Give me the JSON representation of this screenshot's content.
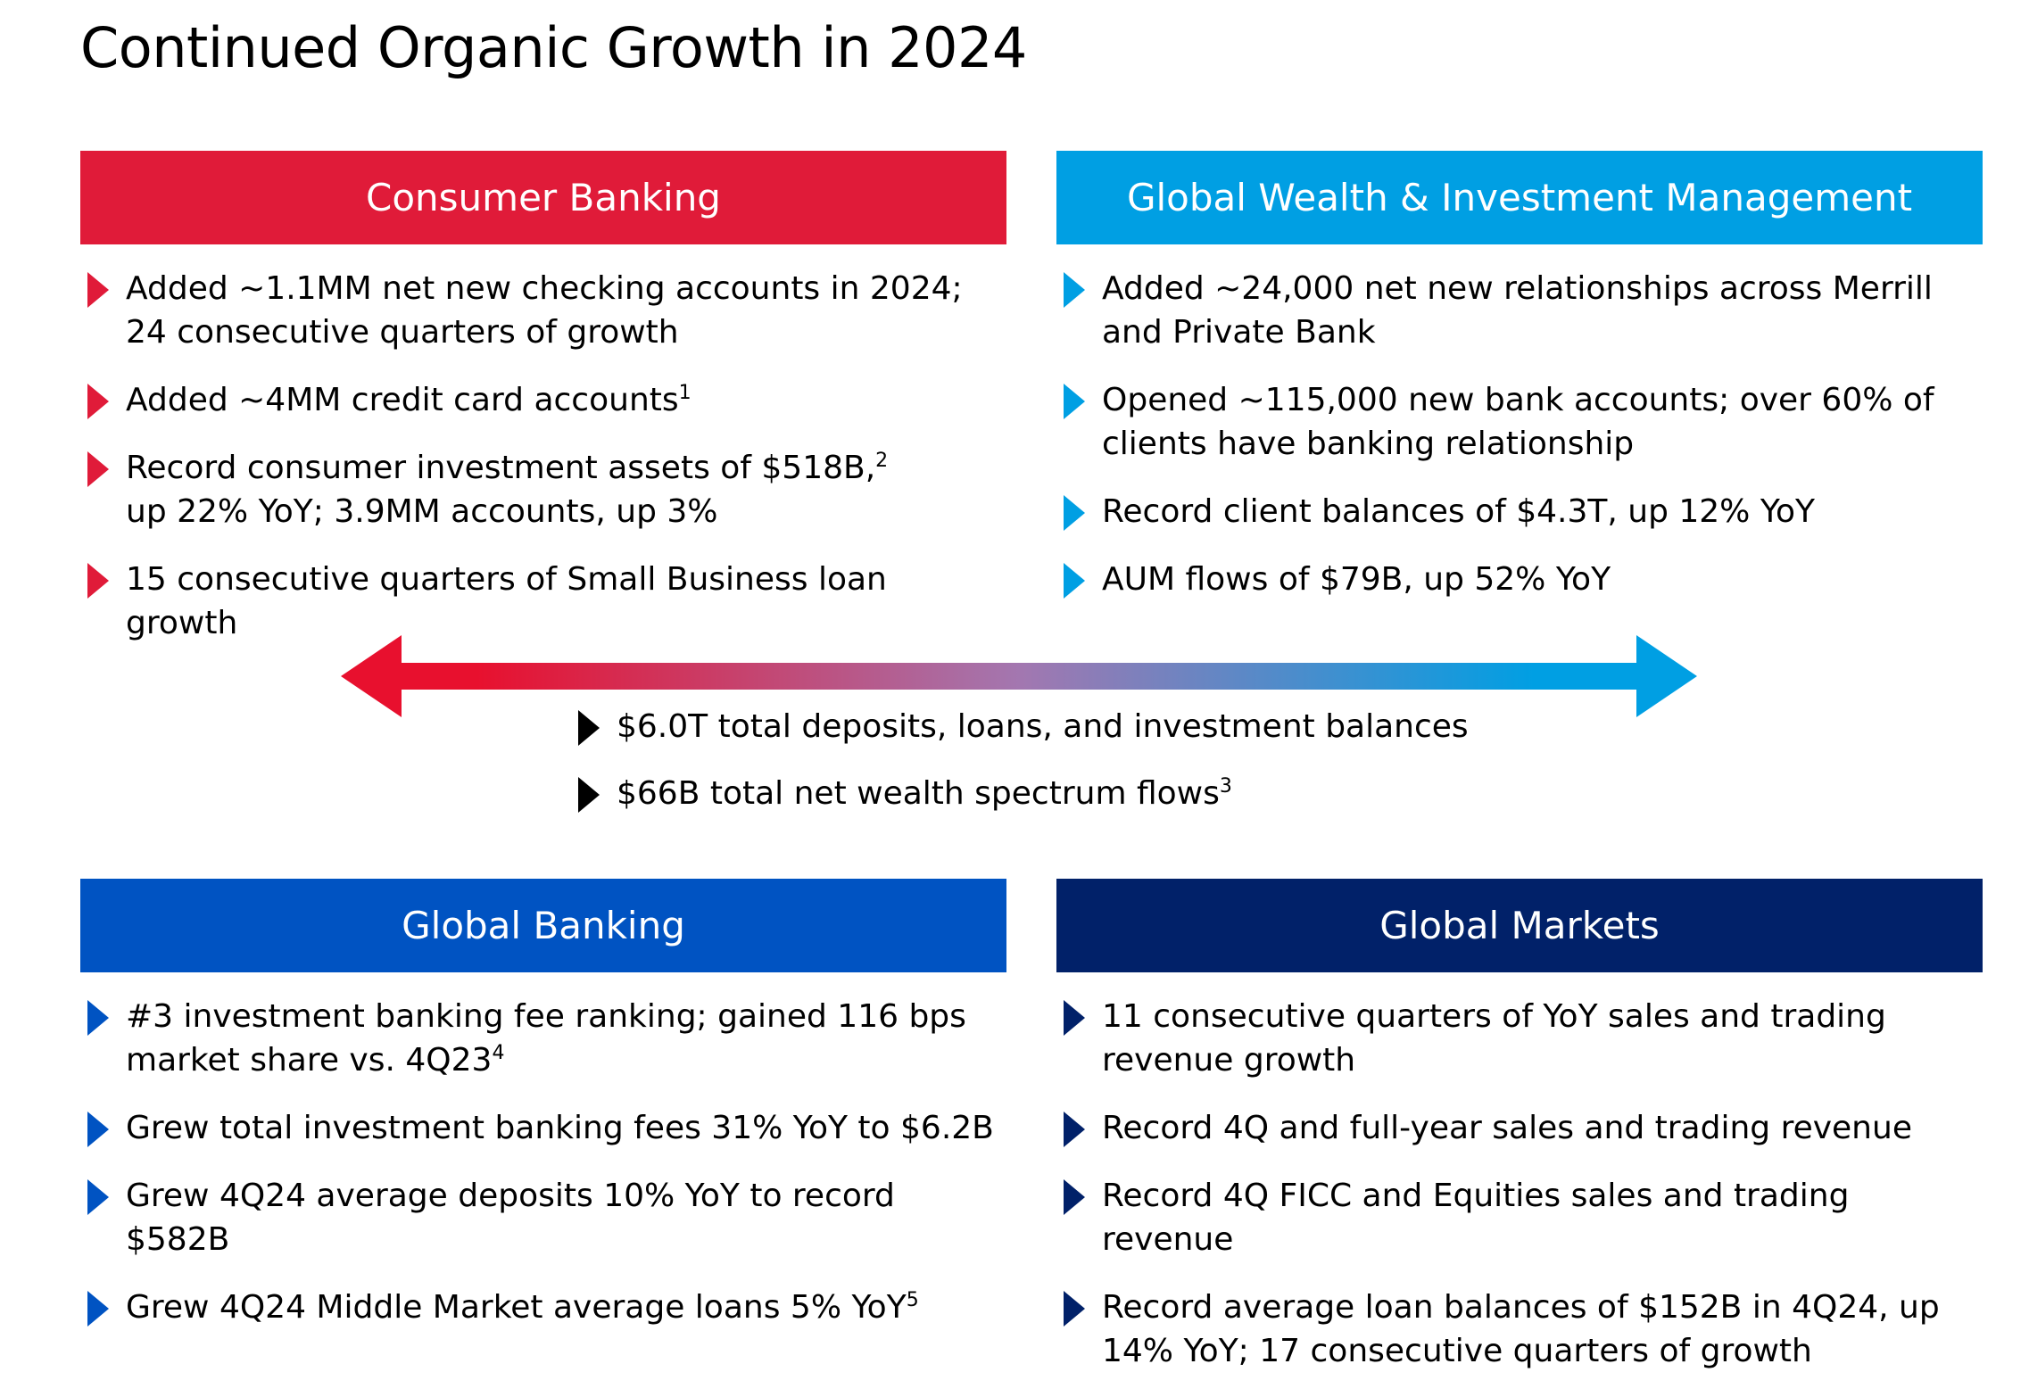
{
  "page": {
    "title": "Continued Organic Growth in 2024"
  },
  "panels": {
    "consumer": {
      "title": "Consumer Banking",
      "color": "#E01B39",
      "bullet_color": "#E01B39",
      "items": [
        {
          "text": "Added ~1.1MM net new checking accounts in 2024; 24 consecutive quarters of growth",
          "sup": ""
        },
        {
          "text": "Added ~4MM credit card accounts",
          "sup": "1"
        },
        {
          "text": "Record consumer investment assets of $518B,",
          "sup": "2",
          "text2": "up 22% YoY; 3.9MM accounts, up 3%"
        },
        {
          "text": "15 consecutive quarters of Small Business loan growth",
          "sup": ""
        }
      ]
    },
    "gwim": {
      "title": "Global Wealth & Investment Management",
      "color": "#009FE3",
      "bullet_color": "#009FE3",
      "items": [
        {
          "text": "Added ~24,000 net new relationships across Merrill and Private Bank",
          "sup": ""
        },
        {
          "text": "Opened ~115,000 new bank accounts; over 60% of clients have banking relationship",
          "sup": ""
        },
        {
          "text": "Record client balances of $4.3T, up 12% YoY",
          "sup": ""
        },
        {
          "text": "AUM flows of $79B, up 52% YoY",
          "sup": ""
        }
      ]
    },
    "global_banking": {
      "title": "Global Banking",
      "color": "#0053C2",
      "bullet_color": "#0053C2",
      "items": [
        {
          "text": "#3 investment banking fee ranking; gained 116 bps market share vs. 4Q23",
          "sup": "4"
        },
        {
          "text": "Grew total investment banking fees 31% YoY to $6.2B",
          "sup": ""
        },
        {
          "text": "Grew 4Q24 average deposits 10% YoY to record $582B",
          "sup": ""
        },
        {
          "text": "Grew 4Q24 Middle Market average loans 5% YoY",
          "sup": "5"
        }
      ]
    },
    "global_markets": {
      "title": "Global Markets",
      "color": "#012169",
      "bullet_color": "#012169",
      "items": [
        {
          "text": "11 consecutive quarters of YoY sales and trading revenue growth",
          "sup": ""
        },
        {
          "text": "Record 4Q and full-year sales and trading revenue",
          "sup": ""
        },
        {
          "text": "Record 4Q FICC and Equities sales and trading revenue",
          "sup": ""
        },
        {
          "text": "Record average loan balances of $152B in 4Q24, up 14% YoY; 17 consecutive quarters of growth",
          "sup": ""
        }
      ]
    }
  },
  "center": {
    "arrow_start_color": "#E8102E",
    "arrow_end_color": "#009FE3",
    "bullet_color": "#000000",
    "items": [
      {
        "text": "$6.0T total deposits, loans, and investment balances",
        "sup": ""
      },
      {
        "text": "$66B total net wealth spectrum flows",
        "sup": "3"
      }
    ]
  }
}
